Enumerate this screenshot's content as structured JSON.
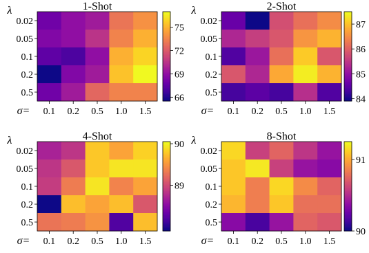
{
  "chart_data": [
    {
      "type": "heatmap",
      "title": "1-Shot",
      "xlabel": "σ=",
      "ylabel": "λ",
      "x": [
        "0.1",
        "0.2",
        "0.5",
        "1.0",
        "1.5"
      ],
      "y": [
        "0.02",
        "0.05",
        "0.1",
        "0.2",
        "0.5"
      ],
      "values": [
        [
          68.0,
          69.0,
          69.5,
          73.0,
          74.0
        ],
        [
          68.5,
          69.0,
          70.5,
          73.5,
          75.0
        ],
        [
          67.5,
          67.0,
          69.0,
          75.0,
          76.0
        ],
        [
          65.5,
          68.5,
          69.5,
          75.5,
          77.0
        ],
        [
          68.0,
          69.5,
          72.5,
          73.5,
          73.5
        ]
      ],
      "colorbar": {
        "ticks": [
          "66",
          "69",
          "72",
          "75"
        ],
        "min": 65.5,
        "max": 77.0
      }
    },
    {
      "type": "heatmap",
      "title": "2-Shot",
      "xlabel": "σ=",
      "ylabel": "λ",
      "x": [
        "0.1",
        "0.2",
        "0.5",
        "1.0",
        "1.5"
      ],
      "y": [
        "0.02",
        "0.05",
        "0.1",
        "0.2",
        "0.5"
      ],
      "values": [
        [
          84.6,
          83.9,
          85.8,
          86.2,
          86.5
        ],
        [
          85.3,
          85.6,
          85.9,
          86.6,
          86.9
        ],
        [
          84.4,
          85.1,
          86.2,
          87.1,
          85.9
        ],
        [
          85.9,
          85.3,
          86.8,
          87.4,
          86.9
        ],
        [
          84.3,
          84.5,
          84.3,
          85.4,
          84.4
        ]
      ],
      "colorbar": {
        "ticks": [
          "84",
          "85",
          "86",
          "87"
        ],
        "min": 83.9,
        "max": 87.5
      }
    },
    {
      "type": "heatmap",
      "title": "4-Shot",
      "xlabel": "σ=",
      "ylabel": "λ",
      "x": [
        "0.1",
        "0.2",
        "0.5",
        "1.0",
        "1.5"
      ],
      "y": [
        "0.02",
        "0.05",
        "0.1",
        "0.2",
        "0.5"
      ],
      "values": [
        [
          88.7,
          88.85,
          89.8,
          89.6,
          89.85
        ],
        [
          88.85,
          89.1,
          89.8,
          89.95,
          89.95
        ],
        [
          88.9,
          89.35,
          89.95,
          89.4,
          89.6
        ],
        [
          87.9,
          89.75,
          89.6,
          89.75,
          89.1
        ],
        [
          89.3,
          89.35,
          89.5,
          88.2,
          89.75
        ]
      ],
      "colorbar": {
        "ticks": [
          "89",
          "90"
        ],
        "min": 87.9,
        "max": 90.05
      }
    },
    {
      "type": "heatmap",
      "title": "8-Shot",
      "xlabel": "σ=",
      "ylabel": "λ",
      "x": [
        "0.1",
        "0.2",
        "0.5",
        "1.0",
        "1.5"
      ],
      "y": [
        "0.02",
        "0.05",
        "0.1",
        "0.2",
        "0.5"
      ],
      "values": [
        [
          91.15,
          90.6,
          90.75,
          90.55,
          90.4
        ],
        [
          91.1,
          91.2,
          90.6,
          90.4,
          90.35
        ],
        [
          91.1,
          90.85,
          91.15,
          90.9,
          90.75
        ],
        [
          91.05,
          90.85,
          91.1,
          90.8,
          90.8
        ],
        [
          90.35,
          90.15,
          90.4,
          90.75,
          90.7
        ]
      ],
      "colorbar": {
        "ticks": [
          "90",
          "91"
        ],
        "min": 90.0,
        "max": 91.25
      }
    }
  ]
}
